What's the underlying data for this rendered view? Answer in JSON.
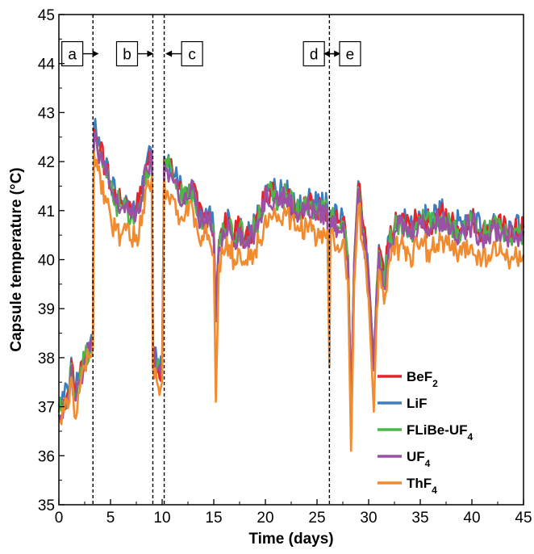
{
  "chart_data": {
    "type": "line",
    "title": "",
    "xlabel": "Time (days)",
    "ylabel": "Capsule temperature (°C)",
    "xlim": [
      0,
      45
    ],
    "ylim": [
      35,
      45
    ],
    "x_ticks": [
      0,
      5,
      10,
      15,
      20,
      25,
      30,
      35,
      40,
      45
    ],
    "y_ticks": [
      35,
      36,
      37,
      38,
      39,
      40,
      41,
      42,
      43,
      44,
      45
    ],
    "grid": false,
    "legend_position": "bottom-right",
    "vlines": [
      3.3,
      9.1,
      10.2,
      26.2
    ],
    "markers": [
      {
        "label": "a",
        "x": 1.3,
        "y": 44.2,
        "direction": "right"
      },
      {
        "label": "b",
        "x": 6.6,
        "y": 44.2,
        "direction": "right"
      },
      {
        "label": "c",
        "x": 12.9,
        "y": 44.2,
        "direction": "left"
      },
      {
        "label": "d",
        "x": 24.7,
        "y": 44.2,
        "direction": "right"
      },
      {
        "label": "e",
        "x": 28.2,
        "y": 44.2,
        "direction": "left"
      }
    ],
    "series": [
      {
        "name": "BeF",
        "sub": "2",
        "color": "#e3242b",
        "offset": 0.05,
        "x": [
          0,
          0.5,
          1,
          1.2,
          1.5,
          2,
          2.5,
          3,
          3.3,
          3.4,
          4,
          4.5,
          5,
          5.5,
          6,
          6.5,
          7,
          7.5,
          8,
          8.5,
          9,
          9.1,
          9.5,
          10,
          10.2,
          10.5,
          11,
          11.5,
          12,
          12.5,
          13,
          13.5,
          14,
          14.5,
          15,
          15.2,
          15.5,
          16,
          16.5,
          17,
          17.5,
          18,
          18.5,
          19,
          19.5,
          20,
          21,
          22,
          23,
          24,
          25,
          26,
          26.2,
          26.3,
          27,
          27.5,
          28,
          28.3,
          28.6,
          29,
          29.5,
          30,
          30.5,
          30.8,
          31,
          31.5,
          32,
          32.5,
          33,
          34,
          35,
          36,
          37,
          38,
          39,
          40,
          41,
          42,
          43,
          44,
          45
        ],
        "y": [
          36.9,
          37.1,
          37.3,
          37.9,
          37.2,
          37.6,
          38.0,
          38.2,
          38.3,
          42.6,
          42.2,
          41.8,
          41.5,
          41.2,
          41.1,
          41.2,
          40.9,
          41.0,
          41.3,
          41.9,
          42.1,
          38.1,
          37.8,
          37.7,
          42.0,
          41.9,
          41.7,
          41.5,
          41.2,
          41.3,
          41.5,
          40.9,
          40.8,
          40.9,
          40.5,
          38.8,
          40.3,
          40.6,
          40.8,
          40.4,
          40.7,
          40.3,
          40.5,
          40.7,
          40.9,
          41.4,
          41.3,
          41.3,
          41.0,
          41.1,
          41.0,
          41.0,
          38.2,
          40.9,
          40.7,
          40.8,
          40.0,
          37.0,
          39.9,
          41.5,
          40.6,
          39.6,
          37.8,
          39.4,
          40.2,
          39.5,
          40.4,
          40.6,
          40.8,
          40.6,
          40.8,
          40.7,
          40.9,
          40.7,
          40.6,
          40.8,
          40.5,
          40.7,
          40.6,
          40.5,
          40.6
        ]
      },
      {
        "name": "LiF",
        "sub": "",
        "color": "#3b7dbd",
        "offset": 0.1,
        "x": [
          0,
          0.5,
          1,
          1.2,
          1.5,
          2,
          2.5,
          3,
          3.3,
          3.4,
          4,
          4.5,
          5,
          5.5,
          6,
          6.5,
          7,
          7.5,
          8,
          8.5,
          9,
          9.1,
          9.5,
          10,
          10.2,
          10.5,
          11,
          11.5,
          12,
          12.5,
          13,
          13.5,
          14,
          14.5,
          15,
          15.2,
          15.5,
          16,
          16.5,
          17,
          17.5,
          18,
          18.5,
          19,
          19.5,
          20,
          21,
          22,
          23,
          24,
          25,
          26,
          26.2,
          26.3,
          27,
          27.5,
          28,
          28.3,
          28.6,
          29,
          29.5,
          30,
          30.5,
          30.8,
          31,
          31.5,
          32,
          32.5,
          33,
          34,
          35,
          36,
          37,
          38,
          39,
          40,
          41,
          42,
          43,
          44,
          45
        ],
        "y": [
          36.9,
          37.1,
          37.3,
          37.9,
          37.2,
          37.6,
          38.0,
          38.2,
          38.3,
          42.6,
          42.2,
          41.8,
          41.5,
          41.2,
          41.1,
          41.2,
          40.9,
          41.0,
          41.3,
          41.9,
          42.1,
          38.1,
          37.8,
          37.7,
          42.0,
          41.9,
          41.7,
          41.5,
          41.2,
          41.3,
          41.5,
          40.9,
          40.8,
          40.9,
          40.5,
          38.8,
          40.3,
          40.6,
          40.8,
          40.4,
          40.7,
          40.3,
          40.5,
          40.7,
          40.9,
          41.4,
          41.3,
          41.3,
          41.0,
          41.1,
          41.0,
          41.0,
          38.2,
          40.9,
          40.7,
          40.8,
          40.0,
          37.0,
          39.9,
          41.5,
          40.6,
          39.6,
          37.8,
          39.4,
          40.2,
          39.5,
          40.4,
          40.6,
          40.8,
          40.6,
          40.8,
          40.7,
          40.9,
          40.7,
          40.6,
          40.8,
          40.5,
          40.7,
          40.6,
          40.5,
          40.6
        ]
      },
      {
        "name": "FLiBe-UF",
        "sub": "4",
        "color": "#4cb648",
        "offset": -0.02,
        "x": [
          0,
          0.5,
          1,
          1.2,
          1.5,
          2,
          2.5,
          3,
          3.3,
          3.4,
          4,
          4.5,
          5,
          5.5,
          6,
          6.5,
          7,
          7.5,
          8,
          8.5,
          9,
          9.1,
          9.5,
          10,
          10.2,
          10.5,
          11,
          11.5,
          12,
          12.5,
          13,
          13.5,
          14,
          14.5,
          15,
          15.2,
          15.5,
          16,
          16.5,
          17,
          17.5,
          18,
          18.5,
          19,
          19.5,
          20,
          21,
          22,
          23,
          24,
          25,
          26,
          26.2,
          26.3,
          27,
          27.5,
          28,
          28.3,
          28.6,
          29,
          29.5,
          30,
          30.5,
          30.8,
          31,
          31.5,
          32,
          32.5,
          33,
          34,
          35,
          36,
          37,
          38,
          39,
          40,
          41,
          42,
          43,
          44,
          45
        ],
        "y": [
          36.9,
          37.1,
          37.3,
          37.9,
          37.2,
          37.6,
          38.0,
          38.2,
          38.3,
          42.6,
          42.2,
          41.8,
          41.5,
          41.2,
          41.1,
          41.2,
          40.9,
          41.0,
          41.3,
          41.9,
          42.1,
          38.1,
          37.8,
          37.7,
          42.0,
          41.9,
          41.7,
          41.5,
          41.2,
          41.3,
          41.5,
          40.9,
          40.8,
          40.9,
          40.5,
          38.8,
          40.3,
          40.6,
          40.8,
          40.4,
          40.7,
          40.3,
          40.5,
          40.7,
          40.9,
          41.4,
          41.3,
          41.3,
          41.0,
          41.1,
          41.0,
          41.0,
          38.2,
          40.9,
          40.7,
          40.8,
          40.0,
          37.0,
          39.9,
          41.5,
          40.6,
          39.6,
          37.8,
          39.4,
          40.2,
          39.5,
          40.4,
          40.6,
          40.8,
          40.6,
          40.8,
          40.7,
          40.9,
          40.7,
          40.6,
          40.8,
          40.5,
          40.7,
          40.6,
          40.5,
          40.6
        ]
      },
      {
        "name": "UF",
        "sub": "4",
        "color": "#9b4fa5",
        "offset": -0.06,
        "x": [
          0,
          0.5,
          1,
          1.2,
          1.5,
          2,
          2.5,
          3,
          3.3,
          3.4,
          4,
          4.5,
          5,
          5.5,
          6,
          6.5,
          7,
          7.5,
          8,
          8.5,
          9,
          9.1,
          9.5,
          10,
          10.2,
          10.5,
          11,
          11.5,
          12,
          12.5,
          13,
          13.5,
          14,
          14.5,
          15,
          15.2,
          15.5,
          16,
          16.5,
          17,
          17.5,
          18,
          18.5,
          19,
          19.5,
          20,
          21,
          22,
          23,
          24,
          25,
          26,
          26.2,
          26.3,
          27,
          27.5,
          28,
          28.3,
          28.6,
          29,
          29.5,
          30,
          30.5,
          30.8,
          31,
          31.5,
          32,
          32.5,
          33,
          34,
          35,
          36,
          37,
          38,
          39,
          40,
          41,
          42,
          43,
          44,
          45
        ],
        "y": [
          36.9,
          37.1,
          37.3,
          37.9,
          37.2,
          37.6,
          38.0,
          38.2,
          38.3,
          42.6,
          42.2,
          41.8,
          41.5,
          41.2,
          41.1,
          41.2,
          40.9,
          41.0,
          41.3,
          41.9,
          42.1,
          38.1,
          37.8,
          37.7,
          42.0,
          41.9,
          41.7,
          41.5,
          41.2,
          41.3,
          41.5,
          40.9,
          40.8,
          40.9,
          40.5,
          38.8,
          40.3,
          40.6,
          40.8,
          40.4,
          40.7,
          40.3,
          40.5,
          40.7,
          40.9,
          41.4,
          41.3,
          41.3,
          41.0,
          41.1,
          41.0,
          41.0,
          38.2,
          40.9,
          40.7,
          40.8,
          40.0,
          37.0,
          39.9,
          41.5,
          40.6,
          39.6,
          37.8,
          39.4,
          40.2,
          39.5,
          40.4,
          40.6,
          40.8,
          40.6,
          40.8,
          40.7,
          40.9,
          40.7,
          40.6,
          40.8,
          40.5,
          40.7,
          40.6,
          40.5,
          40.6
        ]
      },
      {
        "name": "ThF",
        "sub": "4",
        "color": "#f28a2e",
        "offset": 0,
        "x": [
          0,
          0.5,
          1,
          1.2,
          1.5,
          2,
          2.5,
          3,
          3.3,
          3.4,
          4,
          4.5,
          5,
          5.5,
          6,
          6.5,
          7,
          7.5,
          8,
          8.5,
          9,
          9.1,
          9.5,
          10,
          10.2,
          10.5,
          11,
          11.5,
          12,
          12.5,
          13,
          13.5,
          14,
          14.5,
          15,
          15.2,
          15.5,
          16,
          16.5,
          17,
          17.5,
          18,
          18.5,
          19,
          19.5,
          20,
          21,
          22,
          23,
          24,
          25,
          26,
          26.2,
          26.3,
          27,
          27.5,
          28,
          28.3,
          28.6,
          29,
          29.5,
          30,
          30.5,
          30.8,
          31,
          31.5,
          32,
          32.5,
          33,
          34,
          35,
          36,
          37,
          38,
          39,
          40,
          41,
          42,
          43,
          44,
          45
        ],
        "y": [
          36.7,
          36.9,
          37.1,
          37.6,
          36.8,
          37.3,
          37.8,
          38.0,
          38.2,
          42.2,
          41.7,
          41.3,
          40.9,
          40.6,
          40.5,
          40.6,
          40.4,
          40.5,
          40.7,
          41.5,
          41.7,
          37.8,
          37.5,
          37.5,
          41.6,
          41.4,
          41.3,
          41.0,
          40.8,
          40.9,
          41.0,
          40.5,
          40.4,
          40.5,
          40.1,
          37.1,
          39.9,
          40.1,
          40.3,
          40.0,
          40.2,
          39.9,
          40.0,
          40.2,
          40.4,
          40.9,
          40.9,
          40.9,
          40.6,
          40.7,
          40.4,
          40.6,
          37.8,
          40.5,
          40.3,
          40.4,
          39.6,
          36.1,
          39.5,
          41.1,
          40.2,
          39.2,
          36.9,
          39.0,
          39.8,
          39.1,
          40.0,
          40.1,
          40.3,
          40.1,
          40.3,
          40.2,
          40.4,
          40.2,
          40.1,
          40.3,
          40.0,
          40.2,
          40.1,
          40.0,
          40.1
        ]
      }
    ]
  }
}
